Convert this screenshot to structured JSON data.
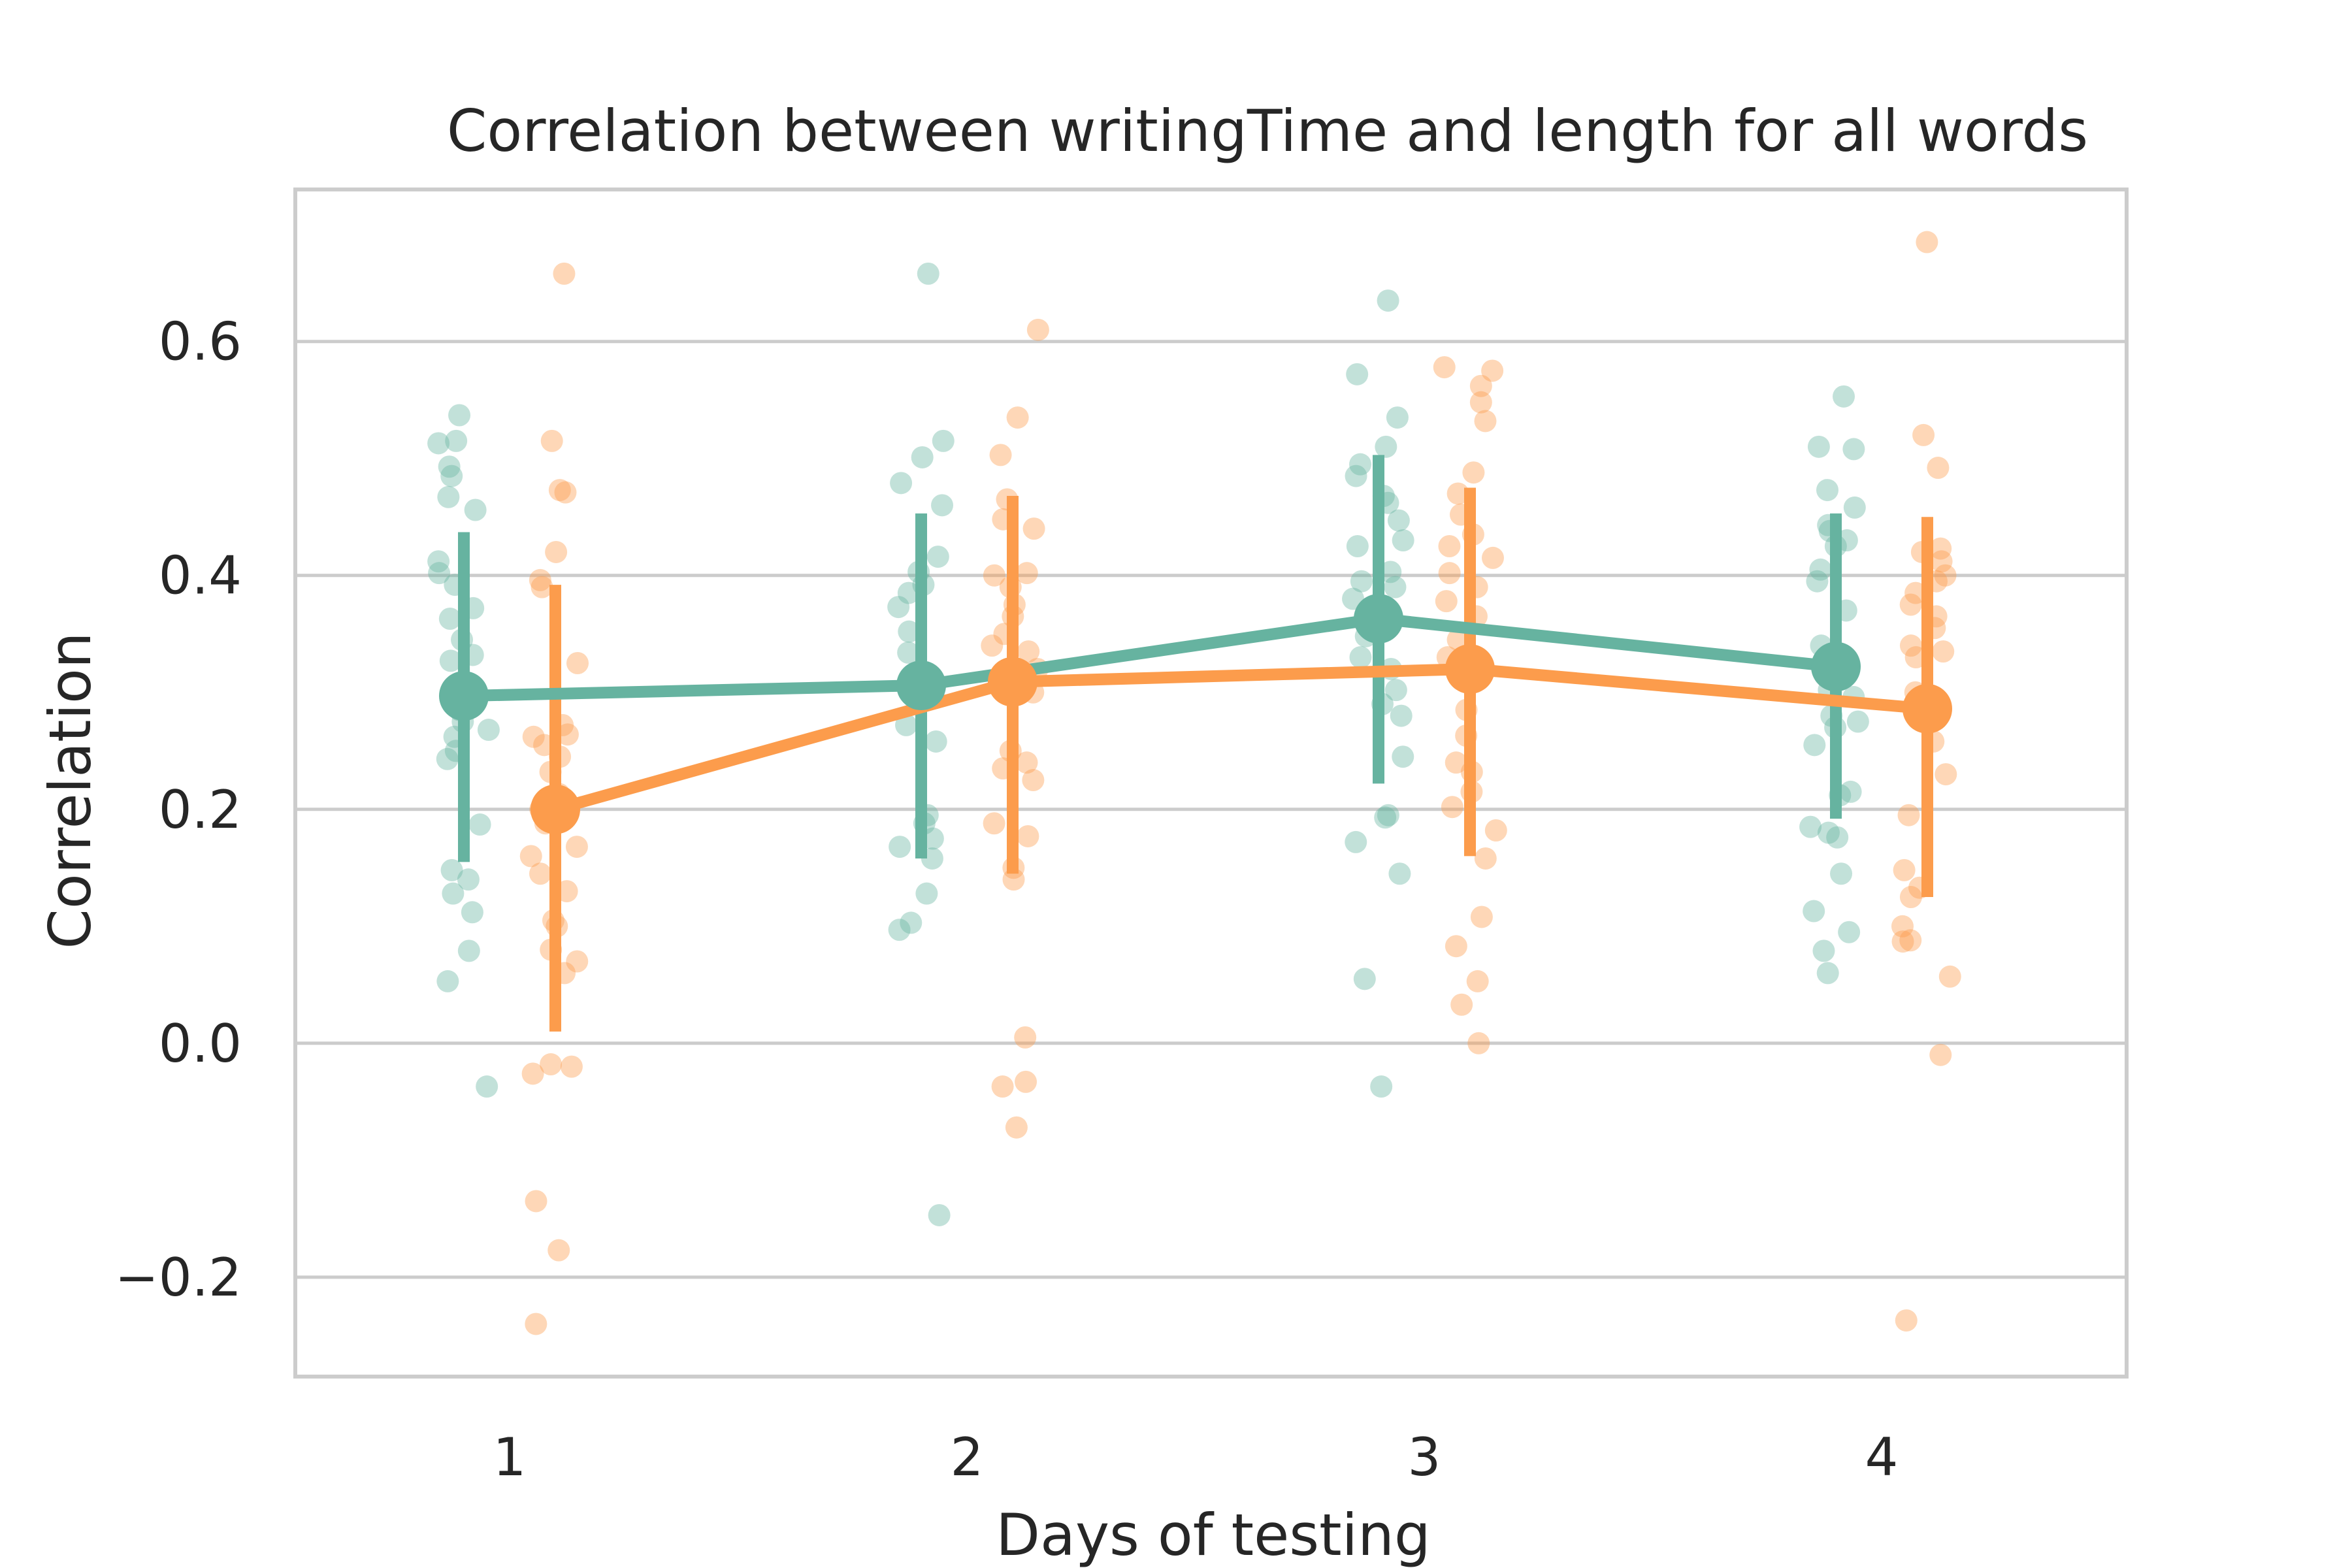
{
  "chart_data": {
    "type": "scatter",
    "title": "Correlation between writingTime and length for all words",
    "xlabel": "Days of testing",
    "ylabel": "Correlation",
    "categories": [
      "1",
      "2",
      "3",
      "4"
    ],
    "yticks": [
      -0.2,
      0.0,
      0.2,
      0.4,
      0.6
    ],
    "ytick_labels": [
      "−0.2",
      "0.0",
      "0.2",
      "0.4",
      "0.6"
    ],
    "ylim": [
      -0.285,
      0.73
    ],
    "grid": "horizontal",
    "legend": "none",
    "colors": {
      "teal": "#66b3a0",
      "orange": "#fc9c4c",
      "grid": "#cccccc",
      "frame": "#cccccc"
    },
    "series": [
      {
        "color": "#66b3a0",
        "mean": [
          0.297,
          0.306,
          0.363,
          0.322
        ],
        "ci_low": [
          0.155,
          0.158,
          0.222,
          0.192
        ],
        "ci_high": [
          0.437,
          0.453,
          0.503,
          0.453
        ],
        "points": [
          [
            0.537,
            0.513,
            0.515,
            0.493,
            0.485,
            0.467,
            0.456,
            0.412,
            0.402,
            0.392,
            0.372,
            0.363,
            0.345,
            0.332,
            0.327,
            0.3,
            0.285,
            0.275,
            0.268,
            0.262,
            0.25,
            0.243,
            0.187,
            0.148,
            0.14,
            0.128,
            0.112,
            0.079,
            0.053,
            -0.037
          ],
          [
            0.658,
            0.515,
            0.501,
            0.479,
            0.46,
            0.416,
            0.403,
            0.392,
            0.385,
            0.373,
            0.352,
            0.334,
            0.31,
            0.297,
            0.272,
            0.258,
            0.195,
            0.188,
            0.175,
            0.168,
            0.158,
            0.128,
            0.103,
            0.097,
            -0.147
          ],
          [
            0.635,
            0.572,
            0.535,
            0.51,
            0.495,
            0.485,
            0.468,
            0.462,
            0.447,
            0.43,
            0.425,
            0.403,
            0.395,
            0.39,
            0.38,
            0.355,
            0.348,
            0.33,
            0.32,
            0.302,
            0.29,
            0.28,
            0.245,
            0.195,
            0.193,
            0.172,
            0.145,
            0.055,
            -0.037
          ],
          [
            0.553,
            0.51,
            0.508,
            0.473,
            0.458,
            0.443,
            0.438,
            0.43,
            0.425,
            0.405,
            0.395,
            0.37,
            0.34,
            0.32,
            0.302,
            0.296,
            0.28,
            0.275,
            0.27,
            0.255,
            0.215,
            0.212,
            0.185,
            0.18,
            0.176,
            0.145,
            0.113,
            0.095,
            0.079,
            0.06
          ]
        ]
      },
      {
        "color": "#fc9c4c",
        "mean": [
          0.2,
          0.309,
          0.32,
          0.286
        ],
        "ci_low": [
          0.01,
          0.145,
          0.16,
          0.125
        ],
        "ci_high": [
          0.392,
          0.468,
          0.475,
          0.45
        ],
        "points": [
          [
            0.658,
            0.515,
            0.473,
            0.471,
            0.42,
            0.396,
            0.39,
            0.325,
            0.272,
            0.264,
            0.262,
            0.255,
            0.245,
            0.232,
            0.213,
            0.2,
            0.188,
            0.168,
            0.16,
            0.145,
            0.13,
            0.105,
            0.1,
            0.08,
            0.07,
            0.06,
            -0.018,
            -0.02,
            -0.026,
            -0.135,
            -0.177,
            -0.24
          ],
          [
            0.61,
            0.535,
            0.503,
            0.465,
            0.448,
            0.44,
            0.402,
            0.4,
            0.39,
            0.375,
            0.365,
            0.35,
            0.34,
            0.335,
            0.32,
            0.3,
            0.25,
            0.24,
            0.235,
            0.225,
            0.188,
            0.177,
            0.15,
            0.14,
            0.005,
            -0.033,
            -0.037,
            -0.072
          ],
          [
            0.578,
            0.575,
            0.562,
            0.548,
            0.532,
            0.488,
            0.47,
            0.452,
            0.435,
            0.425,
            0.415,
            0.402,
            0.39,
            0.378,
            0.365,
            0.345,
            0.33,
            0.31,
            0.285,
            0.263,
            0.24,
            0.232,
            0.215,
            0.202,
            0.182,
            0.158,
            0.108,
            0.083,
            0.053,
            0.033,
            0.0
          ],
          [
            0.685,
            0.52,
            0.492,
            0.423,
            0.42,
            0.412,
            0.4,
            0.395,
            0.385,
            0.375,
            0.365,
            0.355,
            0.34,
            0.335,
            0.33,
            0.3,
            0.29,
            0.258,
            0.23,
            0.195,
            0.148,
            0.133,
            0.125,
            0.1,
            0.088,
            0.087,
            0.057,
            -0.01,
            -0.237
          ]
        ]
      }
    ]
  }
}
